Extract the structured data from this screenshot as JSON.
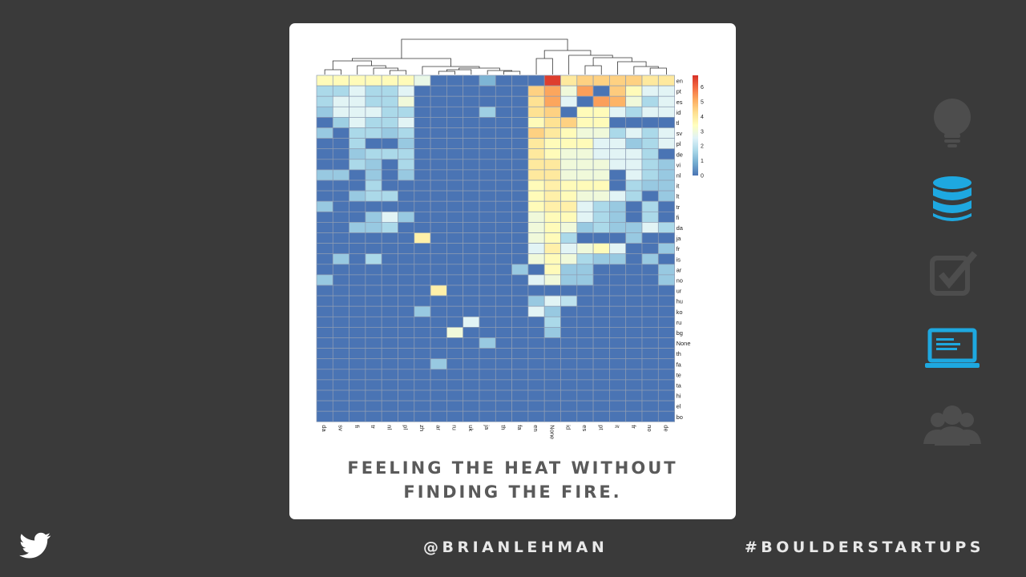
{
  "slide": {
    "caption_line1": "FEELING THE HEAT WITHOUT",
    "caption_line2": "FINDING THE FIRE.",
    "handle": "@BRIANLEHMAN",
    "hashtag": "#BOULDERSTARTUPS"
  },
  "sidebar": {
    "icons": [
      {
        "name": "lightbulb-icon",
        "active": false
      },
      {
        "name": "database-icon",
        "active": true
      },
      {
        "name": "checkbox-icon",
        "active": false
      },
      {
        "name": "laptop-icon",
        "active": true
      },
      {
        "name": "users-icon",
        "active": false
      }
    ],
    "active_color": "#1ea8e0",
    "inactive_color": "#4d4d4d"
  },
  "chart_data": {
    "type": "heatmap",
    "columns": [
      "da",
      "sv",
      "fi",
      "tr",
      "nl",
      "pl",
      "zh",
      "ar",
      "ru",
      "uk",
      "ja",
      "th",
      "fa",
      "en",
      "None",
      "id",
      "es",
      "pt",
      "it",
      "fr",
      "no",
      "de"
    ],
    "rows": [
      "en",
      "pt",
      "es",
      "id",
      "tl",
      "sv",
      "pl",
      "de",
      "vi",
      "nl",
      "it",
      "lt",
      "tr",
      "fi",
      "da",
      "ja",
      "fr",
      "is",
      "ar",
      "no",
      "ur",
      "hu",
      "ko",
      "ru",
      "bg",
      "None",
      "th",
      "fa",
      "te",
      "ta",
      "hi",
      "el",
      "bo"
    ],
    "colorbar": {
      "ticks": [
        "6",
        "5",
        "4",
        "3",
        "2",
        "1",
        "0"
      ],
      "range": [
        0,
        6.8
      ]
    },
    "colors": [
      "#4a74b4",
      "#74add1",
      "#abd9e9",
      "#e0f3f8",
      "#ffffbf",
      "#fee090",
      "#fdae61",
      "#f46d43",
      "#d73027"
    ],
    "values": [
      [
        3.5,
        3.5,
        3.5,
        3.5,
        3.5,
        3.5,
        2.8,
        0,
        0,
        0,
        1,
        0,
        0,
        0,
        6.6,
        4,
        4.5,
        4.5,
        4.5,
        4.5,
        4,
        4
      ],
      [
        1.7,
        1.7,
        2.6,
        1.7,
        1.7,
        2.6,
        0,
        0,
        0,
        0,
        0,
        0,
        0,
        4.5,
        5.2,
        3,
        5.3,
        0,
        4.6,
        3.5,
        2.6,
        2.6
      ],
      [
        1.7,
        2.6,
        2.6,
        1.7,
        1.7,
        3,
        0,
        0,
        0,
        0,
        0,
        0,
        0,
        4.2,
        5.2,
        2.6,
        0,
        5.3,
        5,
        3,
        1.7,
        2.6
      ],
      [
        1.4,
        2.6,
        2.6,
        2.6,
        1.7,
        1.7,
        0,
        0,
        0,
        0,
        1.5,
        0,
        0,
        4.2,
        4.5,
        0,
        3.5,
        3.5,
        2.6,
        1.7,
        2.6,
        2.6
      ],
      [
        0,
        1.5,
        2.6,
        1.7,
        1.7,
        2.6,
        0,
        0,
        0,
        0,
        0,
        0,
        0,
        3.5,
        4.2,
        4.5,
        3.5,
        3.5,
        0,
        0,
        0,
        0
      ],
      [
        1.4,
        0,
        1.7,
        1.7,
        1.4,
        1.7,
        0,
        0,
        0,
        0,
        0,
        0,
        0,
        4.5,
        4,
        3.5,
        3,
        3,
        1.7,
        2.6,
        1.7,
        2.6
      ],
      [
        0,
        0,
        1.7,
        0,
        0,
        1.4,
        0,
        0,
        0,
        0,
        0,
        0,
        0,
        4,
        3.5,
        3.5,
        3.5,
        2.6,
        2.6,
        1.4,
        1.7,
        2.6
      ],
      [
        0,
        0,
        1.4,
        1.7,
        1.7,
        1.7,
        0,
        0,
        0,
        0,
        0,
        0,
        0,
        4,
        3.5,
        3,
        3,
        2.6,
        2.6,
        2.6,
        1.7,
        0
      ],
      [
        0,
        0,
        1.7,
        1.4,
        0,
        1.7,
        0,
        0,
        0,
        0,
        0,
        0,
        0,
        4,
        4,
        3,
        3,
        3,
        2.6,
        2.6,
        1.7,
        1.4
      ],
      [
        1.4,
        1.4,
        0,
        1.4,
        0,
        1.4,
        0,
        0,
        0,
        0,
        0,
        0,
        0,
        4,
        4,
        3,
        3,
        3,
        0,
        2.6,
        1.7,
        1.4
      ],
      [
        0,
        0,
        0,
        1.7,
        0,
        0,
        0,
        0,
        0,
        0,
        0,
        0,
        0,
        3.5,
        3.8,
        3.5,
        3.5,
        3.5,
        0,
        1.7,
        1.4,
        1.4
      ],
      [
        0,
        0,
        1.4,
        1.7,
        1.7,
        0,
        0,
        0,
        0,
        0,
        0,
        0,
        0,
        3.5,
        3.8,
        3.5,
        3,
        3,
        2.6,
        1.7,
        0,
        1.4
      ],
      [
        1.4,
        0,
        0,
        0,
        0,
        0,
        0,
        0,
        0,
        0,
        0,
        0,
        0,
        3.5,
        3.8,
        3.8,
        2.6,
        1.7,
        1.4,
        0,
        1.7,
        0
      ],
      [
        0,
        0,
        0,
        1.4,
        2.6,
        1.4,
        0,
        0,
        0,
        0,
        0,
        0,
        0,
        3,
        3.5,
        3.5,
        2.6,
        1.7,
        1.4,
        0,
        1.7,
        0
      ],
      [
        0,
        0,
        1.4,
        1.4,
        1.7,
        0,
        0,
        0,
        0,
        0,
        0,
        0,
        0,
        3,
        3.5,
        3,
        1.4,
        1.7,
        1.4,
        1.4,
        2.6,
        1.7
      ],
      [
        0,
        0,
        0,
        0,
        0,
        0,
        3.8,
        0,
        0,
        0,
        0,
        0,
        0,
        3,
        3.5,
        1.7,
        0,
        0,
        0,
        1.4,
        0,
        0
      ],
      [
        0,
        0,
        0,
        0,
        0,
        0,
        0,
        0,
        0,
        0,
        0,
        0,
        0,
        2.6,
        3.8,
        2.6,
        3,
        3.5,
        2.6,
        0,
        0,
        1.4
      ],
      [
        0,
        1.4,
        0,
        1.7,
        0,
        0,
        0,
        0,
        0,
        0,
        0,
        0,
        0,
        3,
        3.5,
        3,
        1.7,
        1.4,
        1.4,
        0,
        1.4,
        0
      ],
      [
        0,
        0,
        0,
        0,
        0,
        0,
        0,
        0,
        0,
        0,
        0,
        0,
        1.4,
        0,
        3.5,
        1.4,
        1.4,
        0,
        0,
        0,
        0,
        1.4
      ],
      [
        1.4,
        0,
        0,
        0,
        0,
        0,
        0,
        0,
        0,
        0,
        0,
        0,
        0,
        2.6,
        3,
        1.4,
        1.4,
        0,
        0,
        0,
        0,
        1.4
      ],
      [
        0,
        0,
        0,
        0,
        0,
        0,
        0,
        3.8,
        0,
        0,
        0,
        0,
        0,
        0,
        0,
        0,
        0,
        0,
        0,
        0,
        0,
        0
      ],
      [
        0,
        0,
        0,
        0,
        0,
        0,
        0,
        0,
        0,
        0,
        0,
        0,
        0,
        1.4,
        2.6,
        2,
        0,
        0,
        0,
        0,
        0,
        0
      ],
      [
        0,
        0,
        0,
        0,
        0,
        0,
        1.4,
        0,
        0,
        0,
        0,
        0,
        0,
        2.6,
        1.4,
        0,
        0,
        0,
        0,
        0,
        0,
        0
      ],
      [
        0,
        0,
        0,
        0,
        0,
        0,
        0,
        0,
        0,
        2.6,
        0,
        0,
        0,
        0,
        1.7,
        0,
        0,
        0,
        0,
        0,
        0,
        0
      ],
      [
        0,
        0,
        0,
        0,
        0,
        0,
        0,
        0,
        3,
        0,
        0,
        0,
        0,
        0,
        1.4,
        0,
        0,
        0,
        0,
        0,
        0,
        0
      ],
      [
        0,
        0,
        0,
        0,
        0,
        0,
        0,
        0,
        0,
        0,
        1.4,
        0,
        0,
        0,
        0,
        0,
        0,
        0,
        0,
        0,
        0,
        0
      ],
      [
        0,
        0,
        0,
        0,
        0,
        0,
        0,
        0,
        0,
        0,
        0,
        0,
        0,
        0,
        0,
        0,
        0,
        0,
        0,
        0,
        0,
        0
      ],
      [
        0,
        0,
        0,
        0,
        0,
        0,
        0,
        1.4,
        0,
        0,
        0,
        0,
        0,
        0,
        0,
        0,
        0,
        0,
        0,
        0,
        0,
        0
      ],
      [
        0,
        0,
        0,
        0,
        0,
        0,
        0,
        0,
        0,
        0,
        0,
        0,
        0,
        0,
        0,
        0,
        0,
        0,
        0,
        0,
        0,
        0
      ],
      [
        0,
        0,
        0,
        0,
        0,
        0,
        0,
        0,
        0,
        0,
        0,
        0,
        0,
        0,
        0,
        0,
        0,
        0,
        0,
        0,
        0,
        0
      ],
      [
        0,
        0,
        0,
        0,
        0,
        0,
        0,
        0,
        0,
        0,
        0,
        0,
        0,
        0,
        0,
        0,
        0,
        0,
        0,
        0,
        0,
        0
      ],
      [
        0,
        0,
        0,
        0,
        0,
        0,
        0,
        0,
        0,
        0,
        0,
        0,
        0,
        0,
        0,
        0,
        0,
        0,
        0,
        0,
        0,
        0
      ],
      [
        0,
        0,
        0,
        0,
        0,
        0,
        0,
        0,
        0,
        0,
        0,
        0,
        0,
        0,
        0,
        0,
        0,
        0,
        0,
        0,
        0,
        0
      ]
    ],
    "grid": true,
    "dendrogram": "columns"
  }
}
